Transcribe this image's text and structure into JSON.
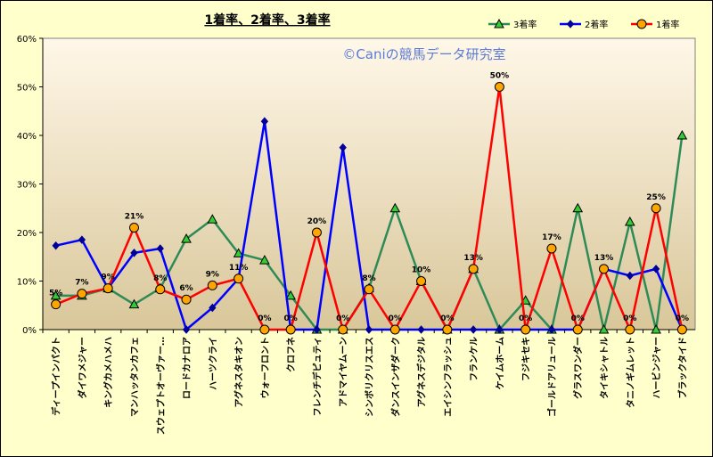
{
  "chart_data": {
    "type": "line",
    "title": "1着率、2着率、3着率",
    "watermark": "©Caniの競馬データ研究室",
    "ylim": [
      0,
      0.6
    ],
    "yticks": [
      "0%",
      "10%",
      "20%",
      "30%",
      "40%",
      "50%",
      "60%"
    ],
    "categories": [
      "ディープインパクト",
      "ダイワメジャー",
      "キングカメハメハ",
      "マンハッタンカフェ",
      "スウェプトオーヴァー…",
      "ロードカナロア",
      "ハーツクライ",
      "アグネスタキオン",
      "ウォーフロント",
      "クロフネ",
      "フレンチデピュティ",
      "アドマイヤムーン",
      "シンボリクリスエス",
      "ダンスインザダーク",
      "アグネスデジタル",
      "エイシンフラッシュ",
      "フランケル",
      "ケイムホーム",
      "フジキセキ",
      "ゴールドアリュール",
      "グラスワンダー",
      "タイキシャトル",
      "タニノギムレット",
      "ハービンジャー",
      "ブラックタイド"
    ],
    "series": [
      {
        "name": "3着率",
        "color": "#2e8b57",
        "marker": "triangle",
        "values": [
          0.07,
          0.07,
          0.085,
          0.052,
          0.085,
          0.187,
          0.227,
          0.157,
          0.143,
          0.07,
          0.0,
          0.0,
          0.085,
          0.25,
          0.1,
          0.0,
          0.125,
          0.0,
          0.06,
          0.0,
          0.25,
          0.0,
          0.222,
          0.0,
          0.4
        ]
      },
      {
        "name": "2着率",
        "color": "#0000ff",
        "marker": "diamond",
        "values": [
          0.173,
          0.185,
          0.085,
          0.158,
          0.167,
          0.0,
          0.045,
          0.105,
          0.429,
          0.0,
          0.0,
          0.375,
          0.0,
          0.0,
          0.0,
          0.0,
          0.0,
          0.0,
          0.0,
          0.0,
          0.0,
          0.125,
          0.111,
          0.125,
          0.0
        ]
      },
      {
        "name": "1着率",
        "color": "#ff0000",
        "marker": "circle",
        "values": [
          0.052,
          0.074,
          0.085,
          0.21,
          0.083,
          0.062,
          0.091,
          0.105,
          0.0,
          0.0,
          0.2,
          0.0,
          0.083,
          0.0,
          0.1,
          0.0,
          0.125,
          0.5,
          0.0,
          0.167,
          0.0,
          0.125,
          0.0,
          0.25,
          0.0
        ]
      }
    ],
    "data_labels": [
      "5%",
      "7%",
      "9%",
      "21%",
      "8%",
      "6%",
      "9%",
      "11%",
      "0%",
      "0%",
      "20%",
      "0%",
      "8%",
      "0%",
      "10%",
      "0%",
      "13%",
      "50%",
      "0%",
      "17%",
      "0%",
      "13%",
      "0%",
      "25%",
      "0%"
    ],
    "legend_position": "top-right",
    "grid": false
  }
}
